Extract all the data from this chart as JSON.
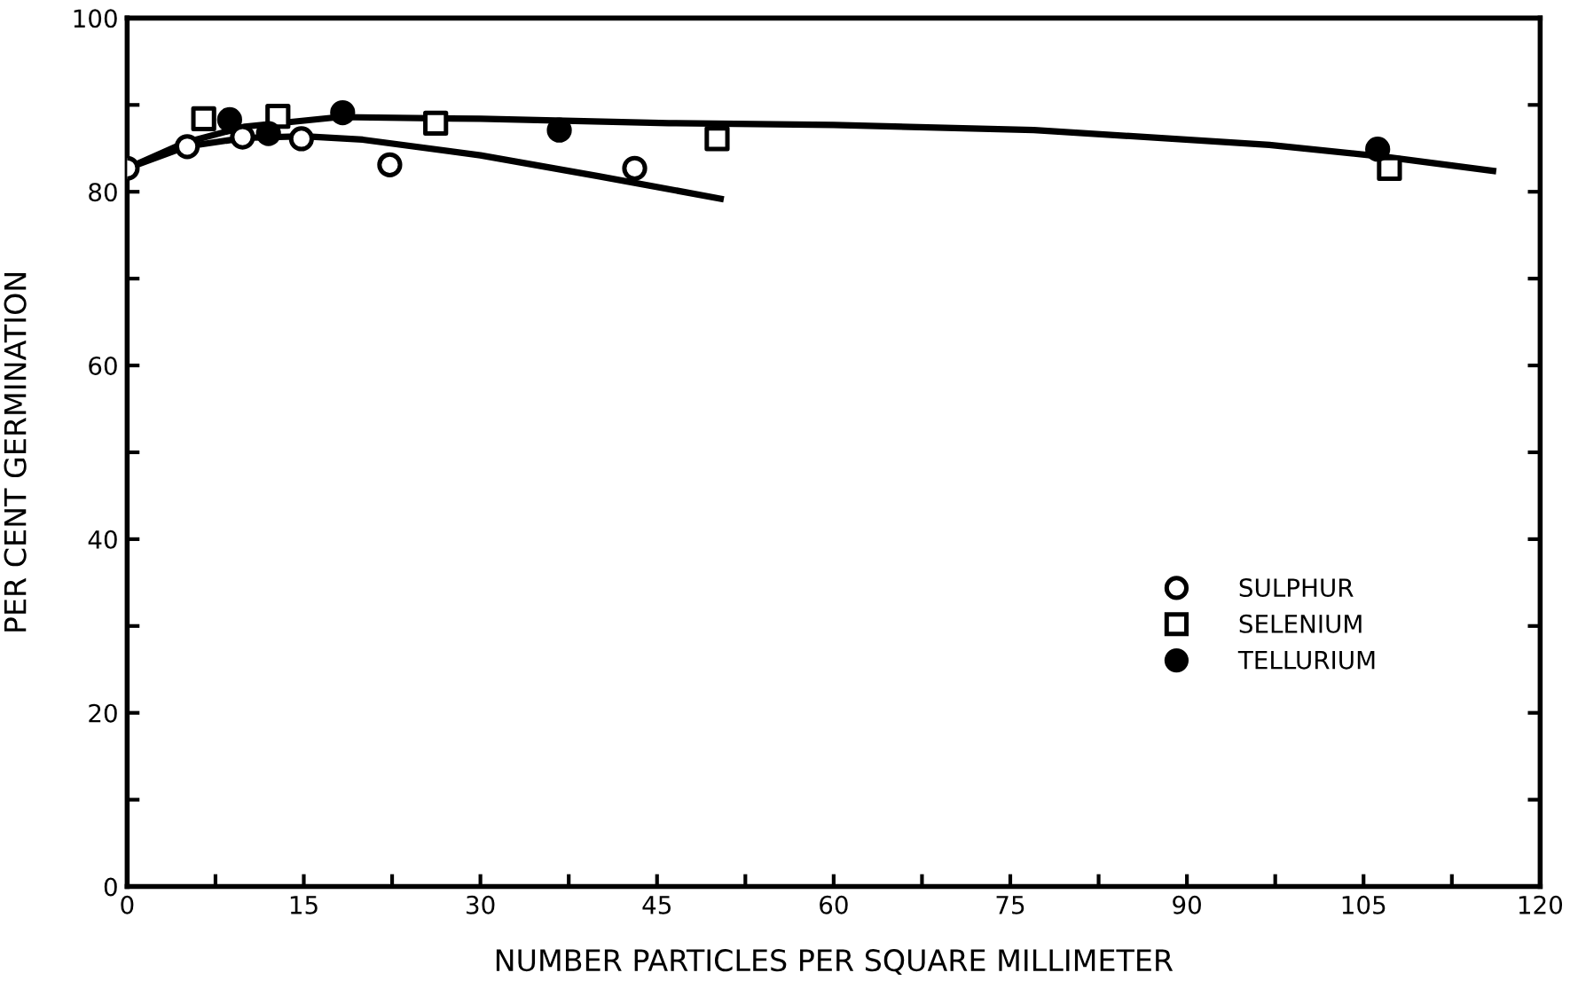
{
  "chart_data": {
    "type": "scatter",
    "xlabel": "NUMBER PARTICLES PER SQUARE MILLIMETER",
    "ylabel": "PER CENT GERMINATION",
    "xlim": [
      0,
      120
    ],
    "ylim": [
      0,
      100
    ],
    "xticks": [
      0,
      {
        "value": 7.5,
        "label": null
      },
      15,
      {
        "value": 22.5,
        "label": null
      },
      30,
      {
        "value": 37.5,
        "label": null
      },
      45,
      {
        "value": 52.5,
        "label": null
      },
      60,
      {
        "value": 67.5,
        "label": null
      },
      75,
      {
        "value": 82.5,
        "label": null
      },
      90,
      {
        "value": 97.5,
        "label": null
      },
      105,
      {
        "value": 112.5,
        "label": null
      },
      120
    ],
    "yticks": [
      0,
      {
        "value": 10,
        "label": null
      },
      20,
      {
        "value": 30,
        "label": null
      },
      40,
      {
        "value": 50,
        "label": null
      },
      60,
      {
        "value": 70,
        "label": null
      },
      80,
      {
        "value": 90,
        "label": null
      },
      100
    ],
    "grid": false,
    "legend": "right",
    "series": [
      {
        "name": "SULPHUR",
        "color": "#ffffff",
        "marker": "circle",
        "x": [
          0,
          5.1,
          9.8,
          14.8,
          22.3,
          43.1
        ],
        "values": [
          82.7,
          85.2,
          86.3,
          86.1,
          83.1,
          82.7
        ]
      },
      {
        "name": "SELENIUM",
        "color": "#ffffff",
        "marker": "square",
        "x": [
          6.5,
          12.8,
          26.2,
          50.1,
          107.2
        ],
        "values": [
          88.4,
          88.7,
          87.9,
          86.1,
          82.7
        ]
      },
      {
        "name": "TELLURIUM",
        "color": "#000000",
        "marker": "circle",
        "x": [
          8.7,
          12,
          18.3,
          36.7,
          106.2
        ],
        "values": [
          88.3,
          86.7,
          89.1,
          87.1,
          84.9
        ]
      },
      {
        "type": "line",
        "color": "#000000",
        "marker": "none",
        "x": [
          0,
          5,
          10,
          15,
          20,
          30,
          40,
          50.4
        ],
        "values": [
          82.7,
          85.2,
          86.2,
          86.4,
          86.0,
          84.2,
          81.8,
          79.2
        ]
      },
      {
        "type": "line",
        "color": "#000000",
        "marker": "none",
        "x": [
          0,
          5,
          10,
          18,
          30,
          46,
          60,
          77,
          97,
          107,
          116
        ],
        "values": [
          82.7,
          85.7,
          87.5,
          88.6,
          88.4,
          87.9,
          87.7,
          87.1,
          85.4,
          84.0,
          82.4
        ]
      }
    ]
  }
}
